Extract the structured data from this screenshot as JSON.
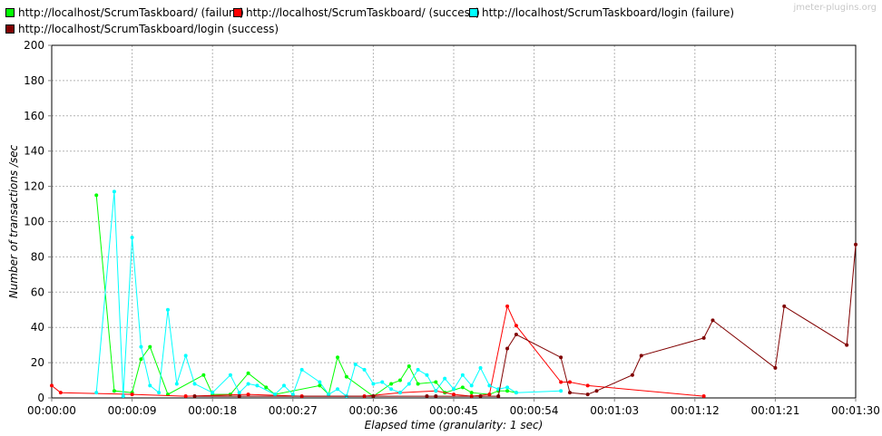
{
  "watermark": "jmeter-plugins.org",
  "chart_data": {
    "type": "line",
    "title": "",
    "xlabel": "Elapsed time (granularity: 1 sec)",
    "ylabel": "Number of transactions /sec",
    "xlim": [
      0,
      90
    ],
    "ylim": [
      0,
      200
    ],
    "yticks": [
      0,
      20,
      40,
      60,
      80,
      100,
      120,
      140,
      160,
      180,
      200
    ],
    "xticks": [
      {
        "v": 0,
        "label": "00:00:00"
      },
      {
        "v": 9,
        "label": "00:00:09"
      },
      {
        "v": 18,
        "label": "00:00:18"
      },
      {
        "v": 27,
        "label": "00:00:27"
      },
      {
        "v": 36,
        "label": "00:00:36"
      },
      {
        "v": 45,
        "label": "00:00:45"
      },
      {
        "v": 54,
        "label": "00:00:54"
      },
      {
        "v": 63,
        "label": "00:01:03"
      },
      {
        "v": 72,
        "label": "00:01:12"
      },
      {
        "v": 81,
        "label": "00:01:21"
      },
      {
        "v": 90,
        "label": "00:01:30"
      }
    ],
    "grid": true,
    "legend_position": "top",
    "series": [
      {
        "name": "http://localhost/ScrumTaskboard/ (failure)",
        "color": "#00ff00",
        "points": [
          [
            5,
            115
          ],
          [
            7,
            4
          ],
          [
            9,
            3
          ],
          [
            10,
            22
          ],
          [
            11,
            29
          ],
          [
            13,
            2
          ],
          [
            17,
            13
          ],
          [
            18,
            2
          ],
          [
            20,
            2
          ],
          [
            22,
            14
          ],
          [
            24,
            6
          ],
          [
            25,
            2
          ],
          [
            30,
            7
          ],
          [
            31,
            2
          ],
          [
            32,
            23
          ],
          [
            33,
            12
          ],
          [
            36,
            1
          ],
          [
            38,
            8
          ],
          [
            39,
            10
          ],
          [
            40,
            18
          ],
          [
            41,
            8
          ],
          [
            43,
            9
          ],
          [
            44,
            3
          ],
          [
            46,
            6
          ],
          [
            47,
            3
          ],
          [
            49,
            2
          ],
          [
            50,
            4
          ],
          [
            51,
            4
          ],
          [
            52,
            3
          ]
        ]
      },
      {
        "name": "http://localhost/ScrumTaskboard/ (success)",
        "color": "#ff0000",
        "points": [
          [
            0,
            7
          ],
          [
            1,
            3
          ],
          [
            9,
            2
          ],
          [
            15,
            1
          ],
          [
            22,
            2
          ],
          [
            28,
            1
          ],
          [
            35,
            1
          ],
          [
            39,
            3
          ],
          [
            43,
            4
          ],
          [
            45,
            2
          ],
          [
            47,
            1
          ],
          [
            49,
            2
          ],
          [
            51,
            52
          ],
          [
            52,
            41
          ],
          [
            57,
            9
          ],
          [
            58,
            9
          ],
          [
            60,
            7
          ],
          [
            73,
            1
          ]
        ]
      },
      {
        "name": "http://localhost/ScrumTaskboard/login (failure)",
        "color": "#00ffff",
        "points": [
          [
            5,
            3
          ],
          [
            7,
            117
          ],
          [
            8,
            1
          ],
          [
            9,
            91
          ],
          [
            10,
            29
          ],
          [
            11,
            7
          ],
          [
            12,
            3
          ],
          [
            13,
            50
          ],
          [
            14,
            8
          ],
          [
            15,
            24
          ],
          [
            16,
            8
          ],
          [
            18,
            3
          ],
          [
            20,
            13
          ],
          [
            21,
            3
          ],
          [
            22,
            8
          ],
          [
            23,
            7
          ],
          [
            25,
            2
          ],
          [
            26,
            7
          ],
          [
            27,
            2
          ],
          [
            28,
            16
          ],
          [
            30,
            9
          ],
          [
            31,
            2
          ],
          [
            32,
            5
          ],
          [
            33,
            1
          ],
          [
            34,
            19
          ],
          [
            35,
            16
          ],
          [
            36,
            8
          ],
          [
            37,
            9
          ],
          [
            38,
            5
          ],
          [
            39,
            3
          ],
          [
            40,
            8
          ],
          [
            41,
            16
          ],
          [
            42,
            13
          ],
          [
            43,
            4
          ],
          [
            44,
            11
          ],
          [
            45,
            5
          ],
          [
            46,
            13
          ],
          [
            47,
            7
          ],
          [
            48,
            17
          ],
          [
            49,
            7
          ],
          [
            50,
            5
          ],
          [
            51,
            6
          ],
          [
            52,
            3
          ],
          [
            57,
            4
          ]
        ]
      },
      {
        "name": "http://localhost/ScrumTaskboard/login (success)",
        "color": "#800000",
        "points": [
          [
            16,
            1
          ],
          [
            21,
            1
          ],
          [
            36,
            1
          ],
          [
            42,
            1
          ],
          [
            43,
            1
          ],
          [
            48,
            1
          ],
          [
            50,
            1
          ],
          [
            51,
            28
          ],
          [
            52,
            36
          ],
          [
            57,
            23
          ],
          [
            58,
            3
          ],
          [
            60,
            2
          ],
          [
            61,
            4
          ],
          [
            65,
            13
          ],
          [
            66,
            24
          ],
          [
            73,
            34
          ],
          [
            74,
            44
          ],
          [
            81,
            17
          ],
          [
            82,
            52
          ],
          [
            89,
            30
          ],
          [
            90,
            87
          ]
        ]
      }
    ]
  }
}
